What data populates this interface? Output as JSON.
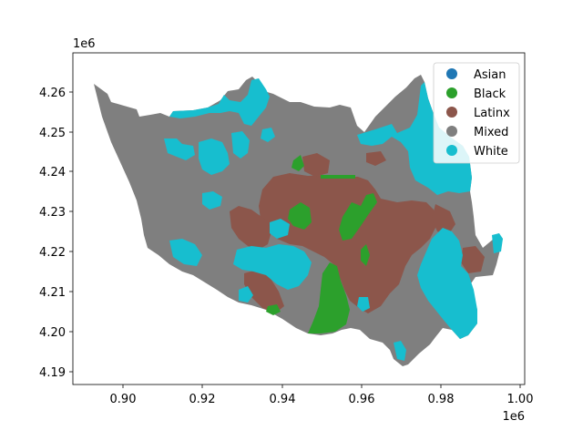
{
  "figure": {
    "x_axis": {
      "ticks": [
        "0.90",
        "0.92",
        "0.94",
        "0.96",
        "0.98",
        "1.00"
      ],
      "offset_label": "1e6"
    },
    "y_axis": {
      "ticks": [
        "4.19",
        "4.20",
        "4.21",
        "4.22",
        "4.23",
        "4.24",
        "4.25",
        "4.26"
      ],
      "offset_label": "1e6"
    },
    "legend": {
      "placement": "top-right",
      "items": [
        {
          "label": "Asian",
          "color": "#1f77b4"
        },
        {
          "label": "Black",
          "color": "#2ca02c"
        },
        {
          "label": "Latinx",
          "color": "#8c564b"
        },
        {
          "label": "Mixed",
          "color": "#7f7f7f"
        },
        {
          "label": "White",
          "color": "#17becf"
        }
      ]
    }
  }
}
